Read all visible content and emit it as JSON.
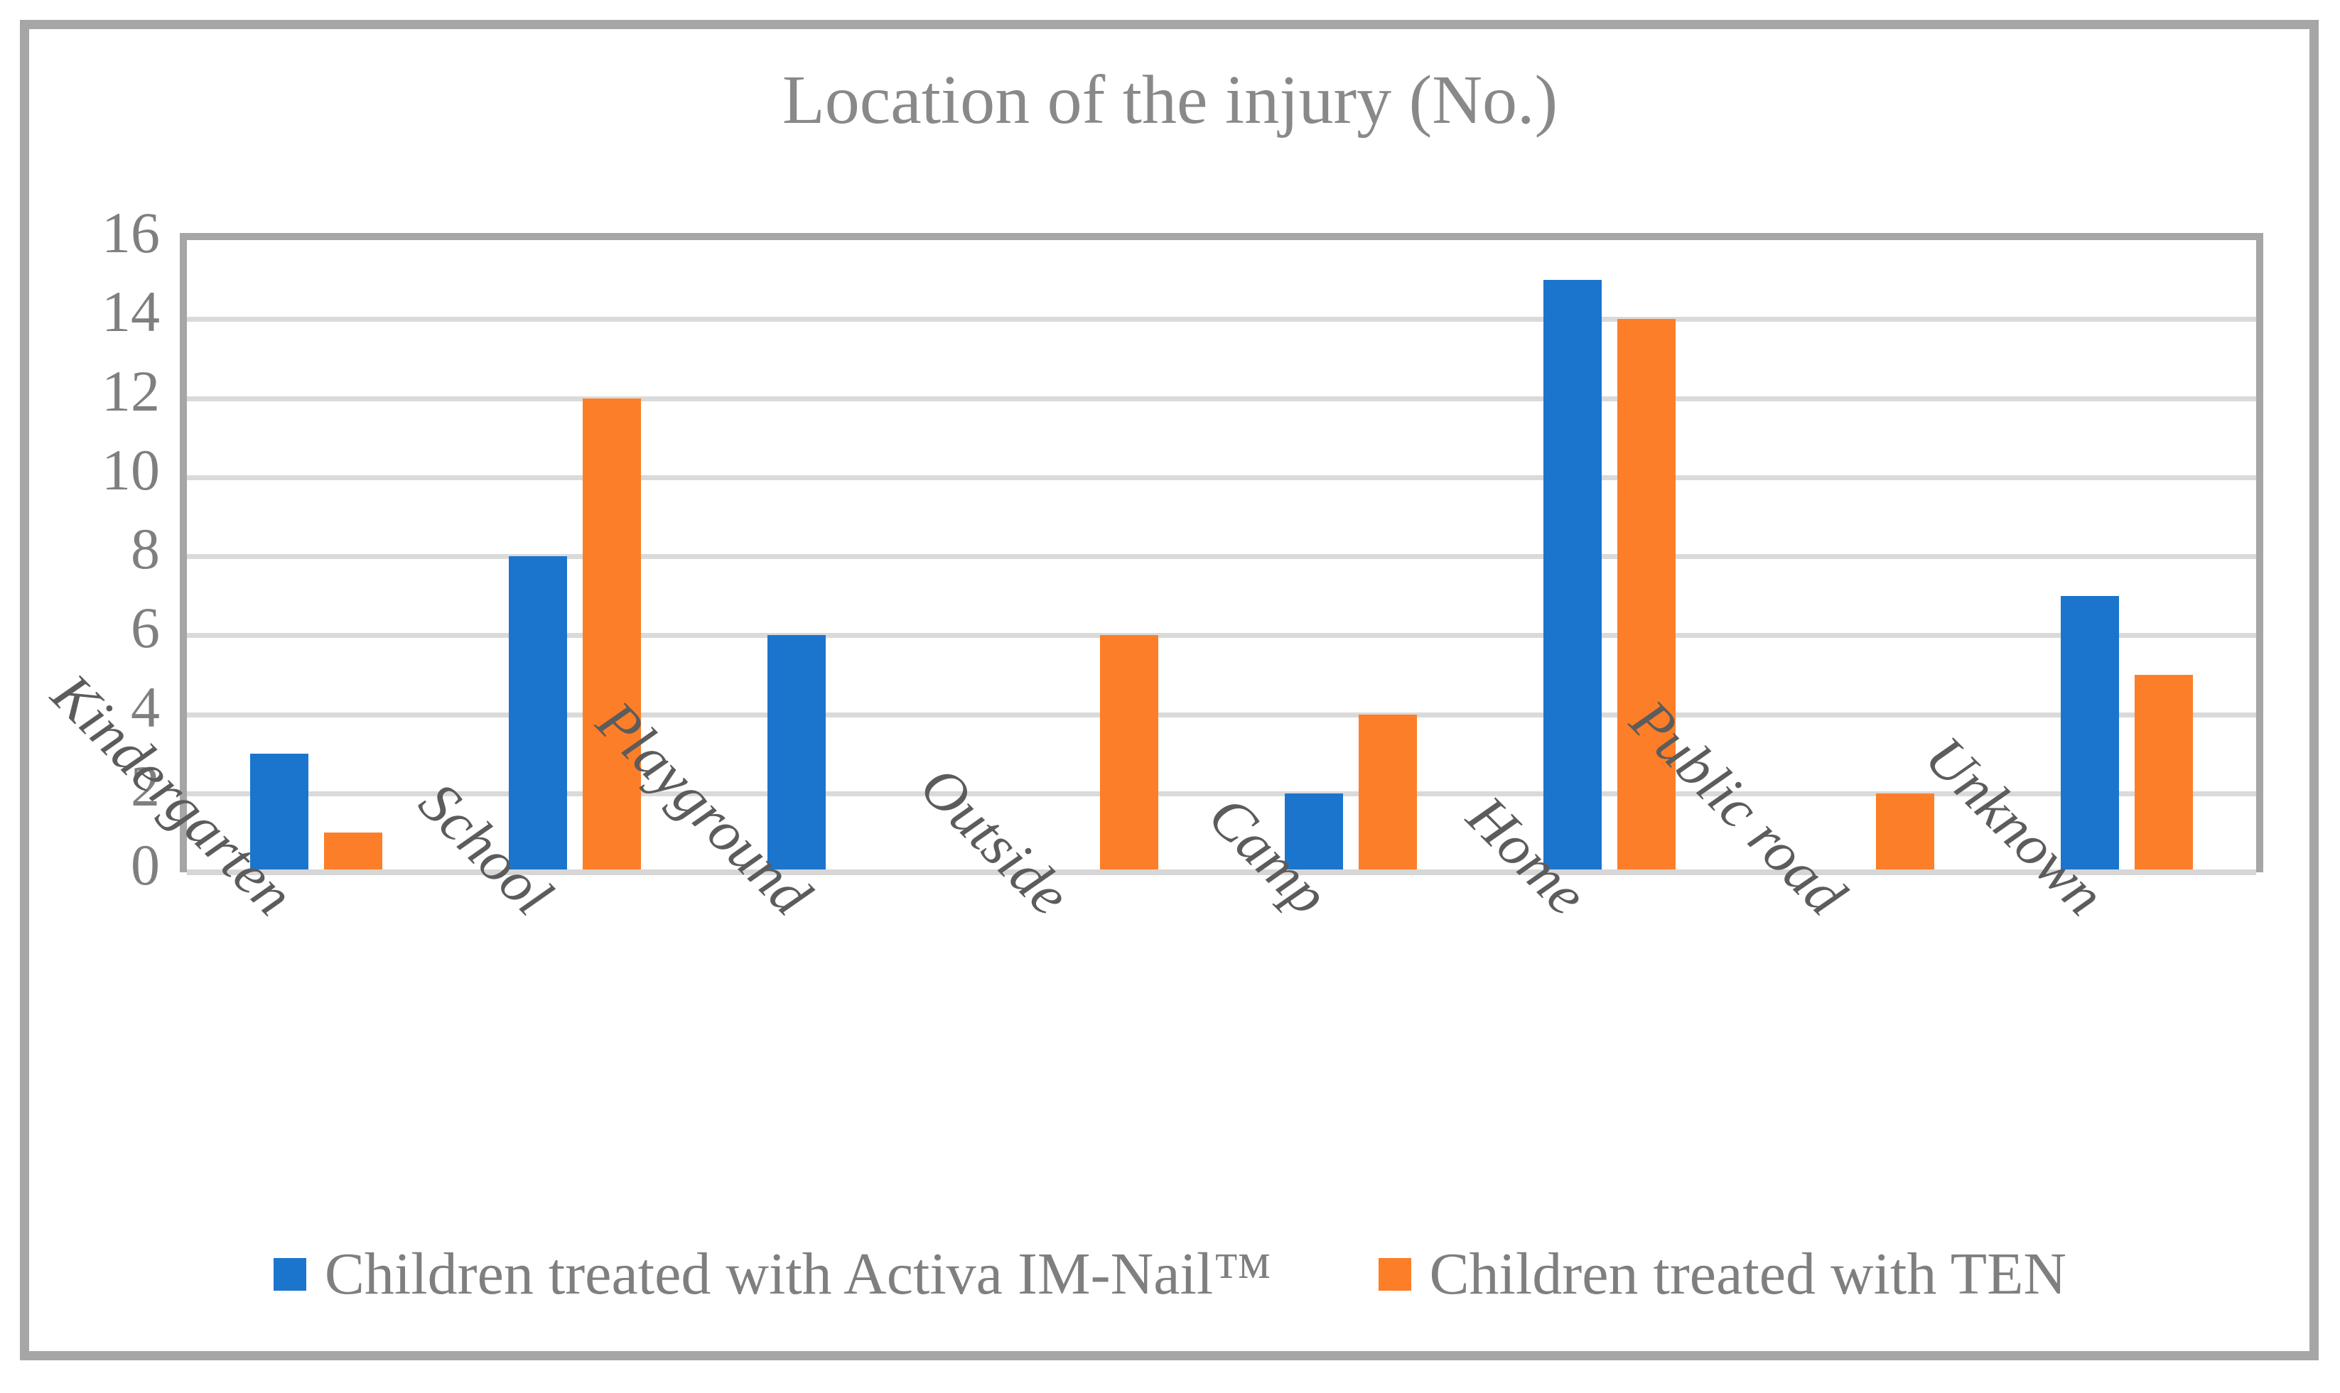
{
  "figure": {
    "border_color": "#a6a6a6",
    "background": "#ffffff"
  },
  "chart_data": {
    "type": "bar",
    "title": "Location of the injury (No.)",
    "categories": [
      "Kindergarten",
      "School",
      "Playground",
      "Outside",
      "Camp",
      "Home",
      "Public road",
      "Unknown"
    ],
    "series": [
      {
        "name": "Children treated with Activa IM-Nail™",
        "color": "#1c75cd",
        "values": [
          3,
          8,
          6,
          0,
          2,
          15,
          0,
          7
        ]
      },
      {
        "name": "Children treated with TEN",
        "color": "#fd7e28",
        "values": [
          1,
          12,
          0,
          6,
          4,
          14,
          2,
          5
        ]
      }
    ],
    "xlabel": "",
    "ylabel": "",
    "ylim": [
      0,
      16
    ],
    "yticks": [
      0,
      2,
      4,
      6,
      8,
      10,
      12,
      14,
      16
    ],
    "grid": true,
    "gridline_color": "#dadada",
    "axis_line_color": "#d6d6d6",
    "plot_border_color": "#a6a6a6",
    "legend_position": "bottom",
    "x_tick_rotation_deg": 45
  }
}
